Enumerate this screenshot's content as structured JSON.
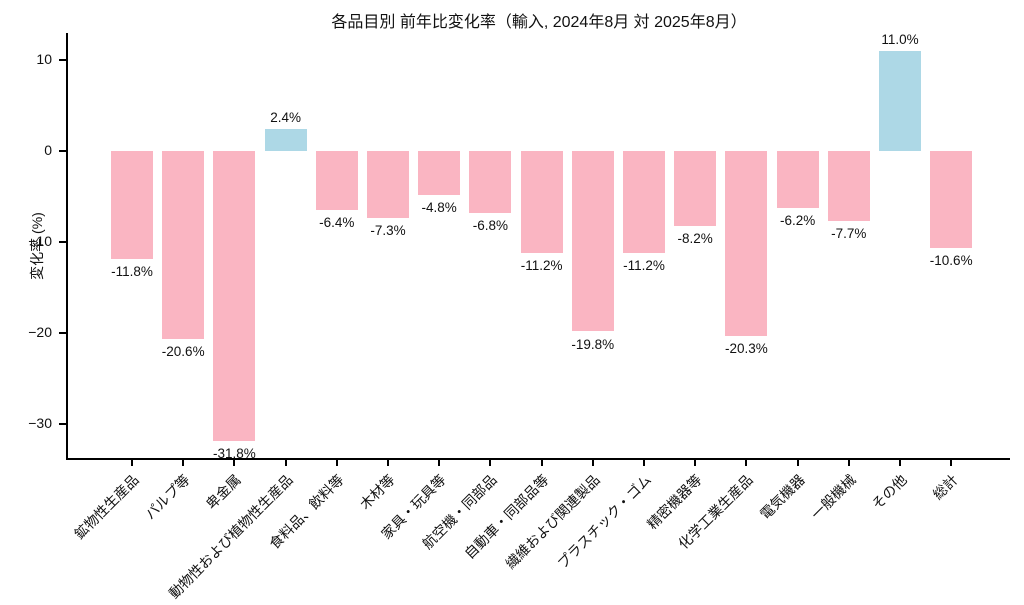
{
  "title": "各品目別 前年比変化率（輸入, 2024年8月 対 2025年8月）",
  "chart_data": {
    "type": "bar",
    "title": "各品目別 前年比変化率（輸入, 2024年8月 対 2025年8月）",
    "categories": [
      "鉱物性生産品",
      "パルプ等",
      "卑金属",
      "動物性および植物性生産品",
      "食料品、飲料等",
      "木材等",
      "家具・玩具等",
      "航空機・同部品",
      "自動車・同部品等",
      "繊維および関連製品",
      "プラスチック・ゴム",
      "精密機器等",
      "化学工業生産品",
      "電気機器",
      "一般機械",
      "その他",
      "総計"
    ],
    "values": [
      -11.8,
      -20.6,
      -31.8,
      2.4,
      -6.4,
      -7.3,
      -4.8,
      -6.8,
      -11.2,
      -19.8,
      -11.2,
      -8.2,
      -20.3,
      -6.2,
      -7.7,
      11.0,
      -10.6
    ],
    "value_labels": [
      "-11.8%",
      "-20.6%",
      "-31.8%",
      "2.4%",
      "-6.4%",
      "-7.3%",
      "-4.8%",
      "-6.8%",
      "-11.2%",
      "-19.8%",
      "-11.2%",
      "-8.2%",
      "-20.3%",
      "-6.2%",
      "-7.7%",
      "11.0%",
      "-10.6%"
    ],
    "xlabel": "",
    "ylabel": "変化率 (%)",
    "yticks": [
      10,
      0,
      -10,
      -20,
      -30
    ],
    "ytick_labels": [
      "10",
      "0",
      "−10",
      "−20",
      "−30"
    ],
    "ylim": [
      -33.7,
      13.0
    ],
    "grid": false,
    "legend_position": "none",
    "colors": {
      "negative_bar": "#fab5c2",
      "positive_bar": "#add8e6",
      "axis": "#000000",
      "text": "#111111"
    }
  }
}
